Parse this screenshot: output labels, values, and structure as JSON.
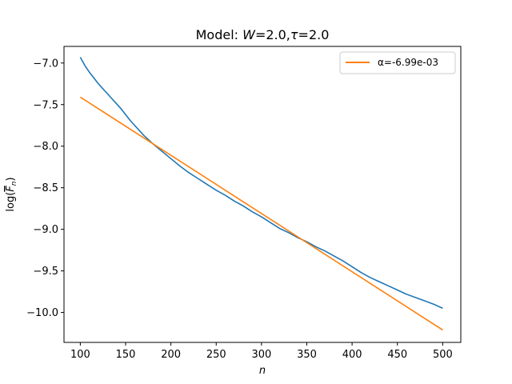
{
  "chart_data": {
    "type": "line",
    "title_prefix": "Model: ",
    "title_W": "W",
    "title_eq1": "=2.0,",
    "title_tau": "τ",
    "title_eq2": "=2.0",
    "xlabel": "n",
    "ylabel": "log(F̄_n)",
    "ylabel_log": "log(",
    "ylabel_F": "F",
    "ylabel_sub": "n",
    "ylabel_close": ")",
    "xlim": [
      82,
      520
    ],
    "ylim": [
      -10.36,
      -6.8
    ],
    "xticks": [
      100,
      150,
      200,
      250,
      300,
      350,
      400,
      450,
      500
    ],
    "xtick_labels": [
      "100",
      "150",
      "200",
      "250",
      "300",
      "350",
      "400",
      "450",
      "500"
    ],
    "yticks": [
      -7.0,
      -7.5,
      -8.0,
      -8.5,
      -9.0,
      -9.5,
      -10.0
    ],
    "ytick_labels": [
      "−7.0",
      "−7.5",
      "−8.0",
      "−8.5",
      "−9.0",
      "−9.5",
      "−10.0"
    ],
    "legend_position": "top-right",
    "legend_label": "α=-6.99e-03",
    "series": [
      {
        "color": "#1f77b4",
        "x": [
          100,
          105,
          110,
          115,
          120,
          125,
          130,
          135,
          140,
          145,
          150,
          155,
          160,
          165,
          170,
          180,
          190,
          200,
          210,
          220,
          230,
          240,
          250,
          260,
          270,
          280,
          290,
          300,
          310,
          320,
          330,
          340,
          350,
          360,
          370,
          380,
          390,
          400,
          410,
          420,
          430,
          440,
          450,
          460,
          470,
          480,
          490,
          500
        ],
        "y": [
          -6.93,
          -7.03,
          -7.11,
          -7.18,
          -7.25,
          -7.31,
          -7.37,
          -7.43,
          -7.49,
          -7.55,
          -7.62,
          -7.69,
          -7.75,
          -7.81,
          -7.87,
          -7.97,
          -8.06,
          -8.15,
          -8.24,
          -8.32,
          -8.39,
          -8.46,
          -8.53,
          -8.59,
          -8.66,
          -8.72,
          -8.79,
          -8.85,
          -8.92,
          -8.99,
          -9.04,
          -9.1,
          -9.15,
          -9.21,
          -9.26,
          -9.32,
          -9.38,
          -9.45,
          -9.52,
          -9.58,
          -9.63,
          -9.68,
          -9.73,
          -9.78,
          -9.82,
          -9.86,
          -9.9,
          -9.95
        ]
      },
      {
        "name": "α=-6.99e-03",
        "color": "#ff7f0e",
        "x": [
          100,
          500
        ],
        "y": [
          -7.41,
          -10.21
        ]
      }
    ]
  }
}
